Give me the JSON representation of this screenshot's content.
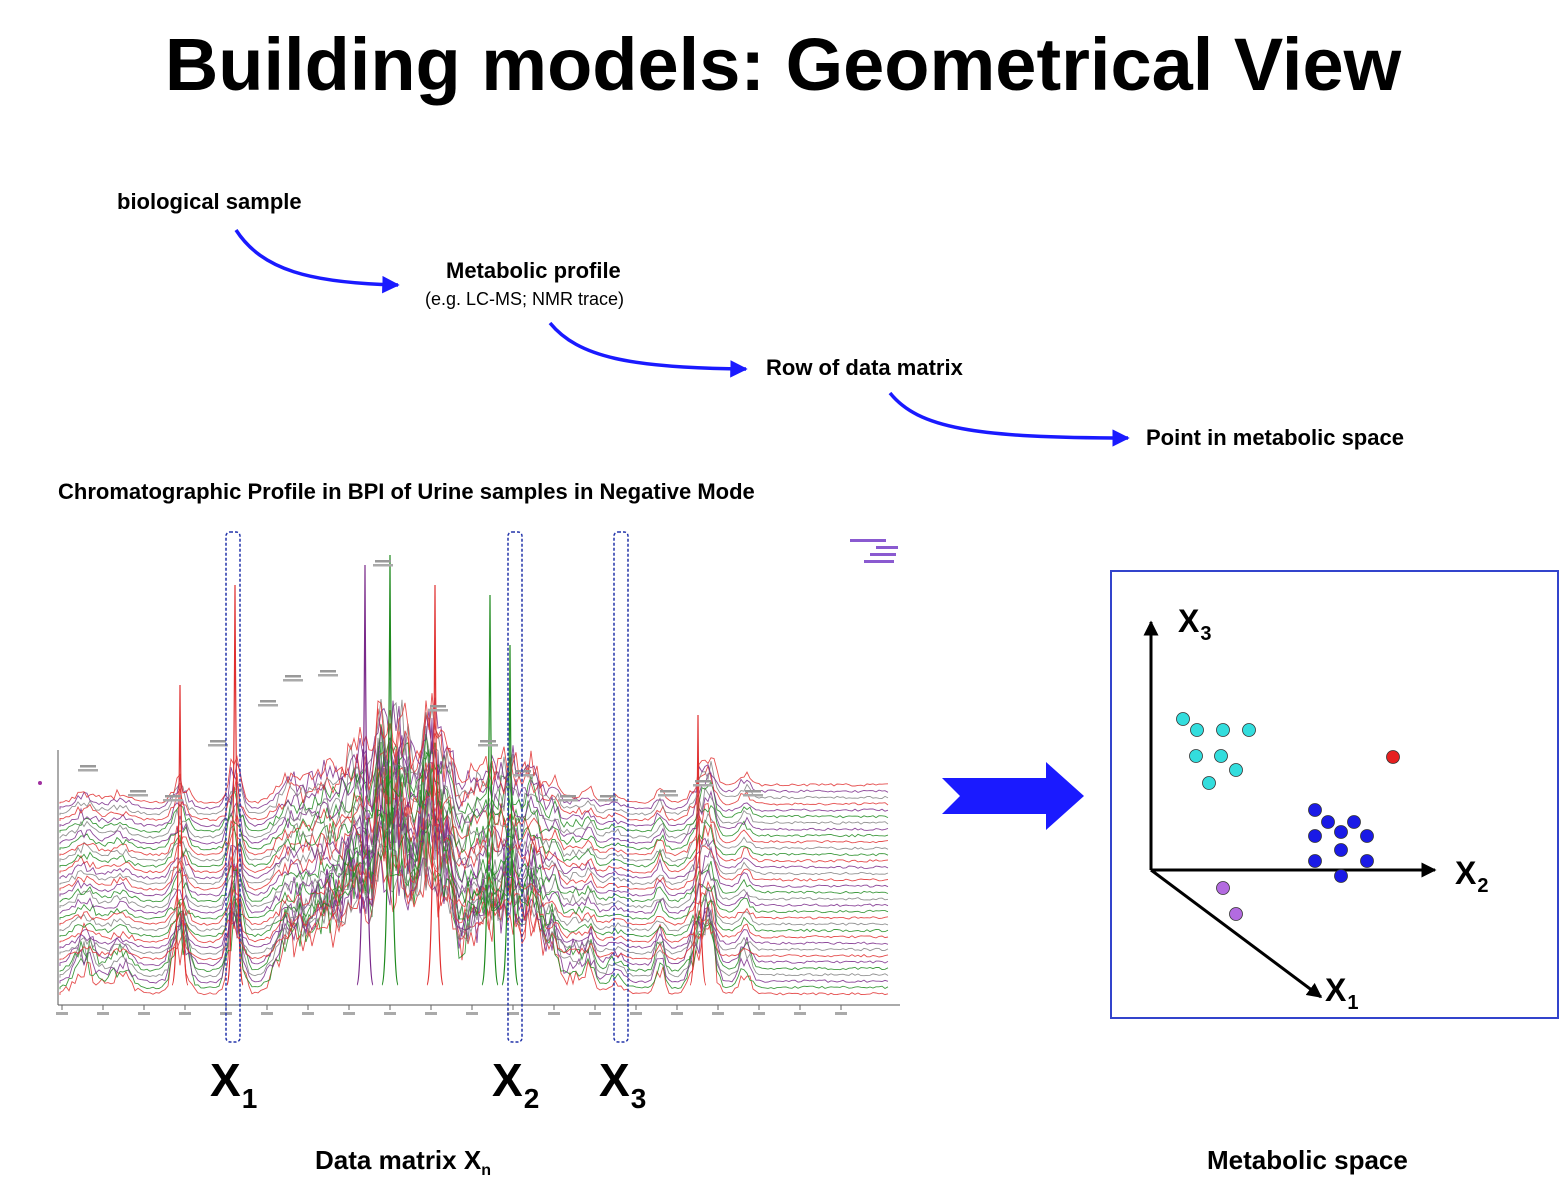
{
  "title": "Building models: Geometrical View",
  "flow": {
    "biological_sample": "biological sample",
    "metabolic_profile": "Metabolic profile",
    "metabolic_profile_sub": "(e.g. LC-MS; NMR trace)",
    "row_of_data_matrix": "Row of data matrix",
    "point_in_metabolic_space": "Point in metabolic space"
  },
  "chromatogram": {
    "caption": "Chromatographic Profile in BPI of Urine samples in Negative Mode",
    "selected_variables": [
      {
        "label": "X",
        "sub": "1"
      },
      {
        "label": "X",
        "sub": "2"
      },
      {
        "label": "X",
        "sub": "3"
      }
    ],
    "footer_label": "Data matrix X",
    "footer_sub": "n"
  },
  "metabolic_space": {
    "axes": [
      {
        "label": "X",
        "sub": "3"
      },
      {
        "label": "X",
        "sub": "2"
      },
      {
        "label": "X",
        "sub": "1"
      }
    ],
    "footer_label": "Metabolic space",
    "colors": {
      "cyan_cluster": "#33dddd",
      "blue_cluster": "#1a1ae6",
      "purple_cluster": "#b36be0",
      "outlier": "#e62020",
      "frame": "#3344cc"
    }
  },
  "colors": {
    "arrow": "#1a1aff",
    "dashed_box": "#2233aa",
    "trace_red": "#e03030",
    "trace_green": "#1f8a1f",
    "trace_purple": "#7a2a8a",
    "trace_grey": "#808080"
  }
}
